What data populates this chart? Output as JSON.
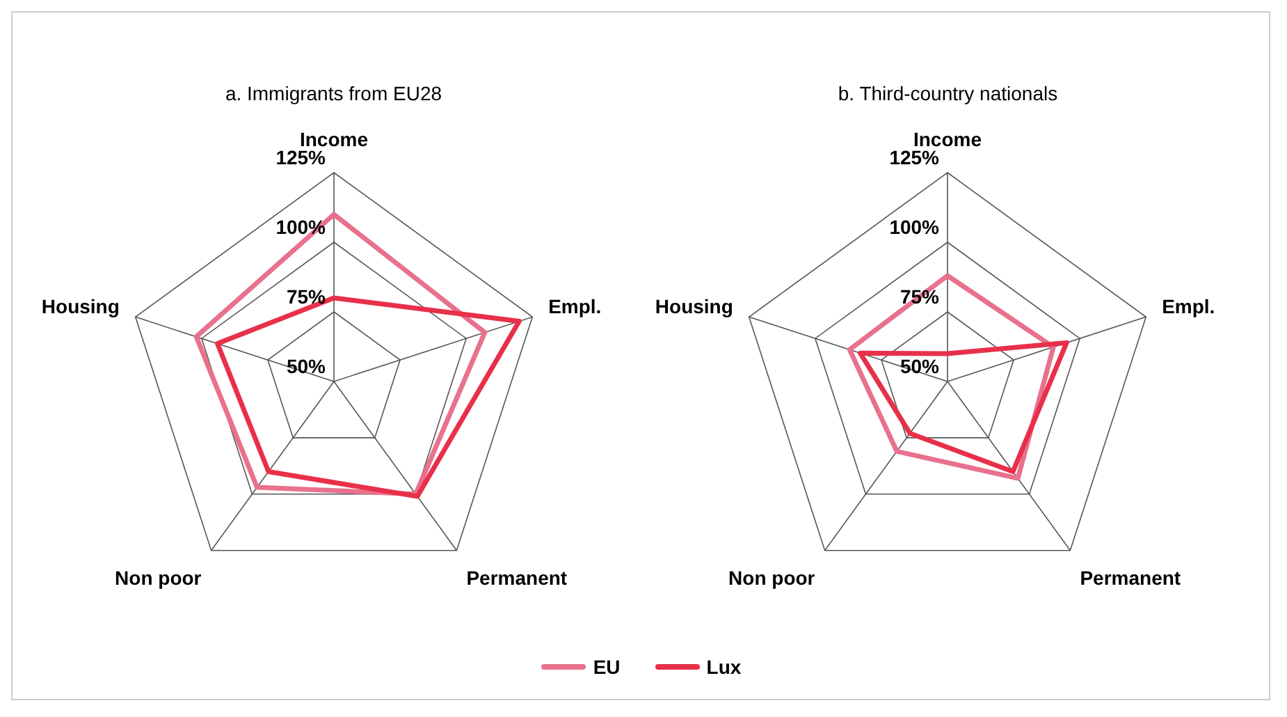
{
  "chart_data": [
    {
      "type": "radar",
      "title": "a. Immigrants from EU28",
      "categories": [
        "Income",
        "Empl.",
        "Permanent",
        "Non poor",
        "Housing"
      ],
      "ylim": [
        50,
        125
      ],
      "yticks": [
        {
          "value": 50,
          "label": "50%"
        },
        {
          "value": 75,
          "label": "75%"
        },
        {
          "value": 100,
          "label": "100%"
        },
        {
          "value": 125,
          "label": "125%"
        }
      ],
      "legend": "bottom",
      "grid": true,
      "series": [
        {
          "name": "EU",
          "color": "#e8718d",
          "values": [
            110,
            107,
            100,
            97,
            102
          ]
        },
        {
          "name": "Lux",
          "color": "#e8304a",
          "values": [
            80,
            120,
            101,
            90,
            94
          ]
        }
      ]
    },
    {
      "type": "radar",
      "title": "b. Third-country nationals",
      "categories": [
        "Income",
        "Empl.",
        "Permanent",
        "Non poor",
        "Housing"
      ],
      "ylim": [
        50,
        125
      ],
      "yticks": [
        {
          "value": 50,
          "label": "50%"
        },
        {
          "value": 75,
          "label": "75%"
        },
        {
          "value": 100,
          "label": "100%"
        },
        {
          "value": 125,
          "label": "125%"
        }
      ],
      "legend": "bottom",
      "grid": true,
      "series": [
        {
          "name": "EU",
          "color": "#e8718d",
          "values": [
            88,
            90,
            93,
            81,
            87
          ]
        },
        {
          "name": "Lux",
          "color": "#e8304a",
          "values": [
            60,
            95,
            90,
            73,
            83
          ]
        }
      ]
    }
  ]
}
